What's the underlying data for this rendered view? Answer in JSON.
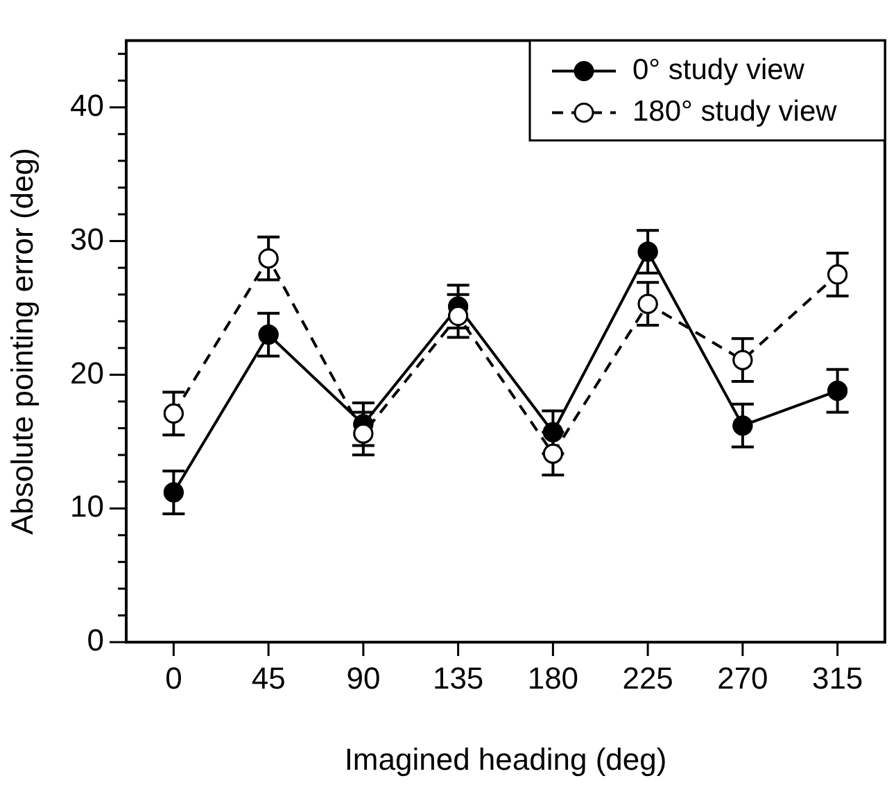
{
  "chart_data": {
    "type": "line",
    "xlabel": "Imagined heading (deg)",
    "ylabel": "Absolute pointing error (deg)",
    "categories": [
      "0",
      "45",
      "90",
      "135",
      "180",
      "225",
      "270",
      "315"
    ],
    "series": [
      {
        "name": "0° study view",
        "color": "#000000",
        "line_style": "solid",
        "values": [
          11.2,
          23.0,
          16.3,
          25.1,
          15.7,
          29.2,
          16.2,
          18.8
        ],
        "errors": [
          1.6,
          1.6,
          1.6,
          1.6,
          1.6,
          1.6,
          1.6,
          1.6
        ]
      },
      {
        "name": "180° study view",
        "color": "#000000",
        "line_style": "dashed",
        "values": [
          17.1,
          28.7,
          15.6,
          24.4,
          14.1,
          25.3,
          21.1,
          27.5
        ],
        "errors": [
          1.6,
          1.6,
          1.6,
          1.6,
          1.6,
          1.6,
          1.6,
          1.6
        ]
      }
    ],
    "ylim": [
      0,
      45
    ],
    "yticks": [
      0,
      {
        "value": 2,
        "label": null
      },
      {
        "value": 4,
        "label": null
      },
      {
        "value": 6,
        "label": null
      },
      {
        "value": 8,
        "label": null
      },
      10,
      {
        "value": 12,
        "label": null
      },
      {
        "value": 14,
        "label": null
      },
      {
        "value": 16,
        "label": null
      },
      {
        "value": 18,
        "label": null
      },
      20,
      {
        "value": 22,
        "label": null
      },
      {
        "value": 24,
        "label": null
      },
      {
        "value": 26,
        "label": null
      },
      {
        "value": 28,
        "label": null
      },
      30,
      {
        "value": 32,
        "label": null
      },
      {
        "value": 34,
        "label": null
      },
      {
        "value": 36,
        "label": null
      },
      {
        "value": 38,
        "label": null
      },
      40,
      {
        "value": 42,
        "label": null
      },
      {
        "value": 44,
        "label": null
      }
    ],
    "grid": false,
    "legend": "top right",
    "marker": "circle"
  }
}
